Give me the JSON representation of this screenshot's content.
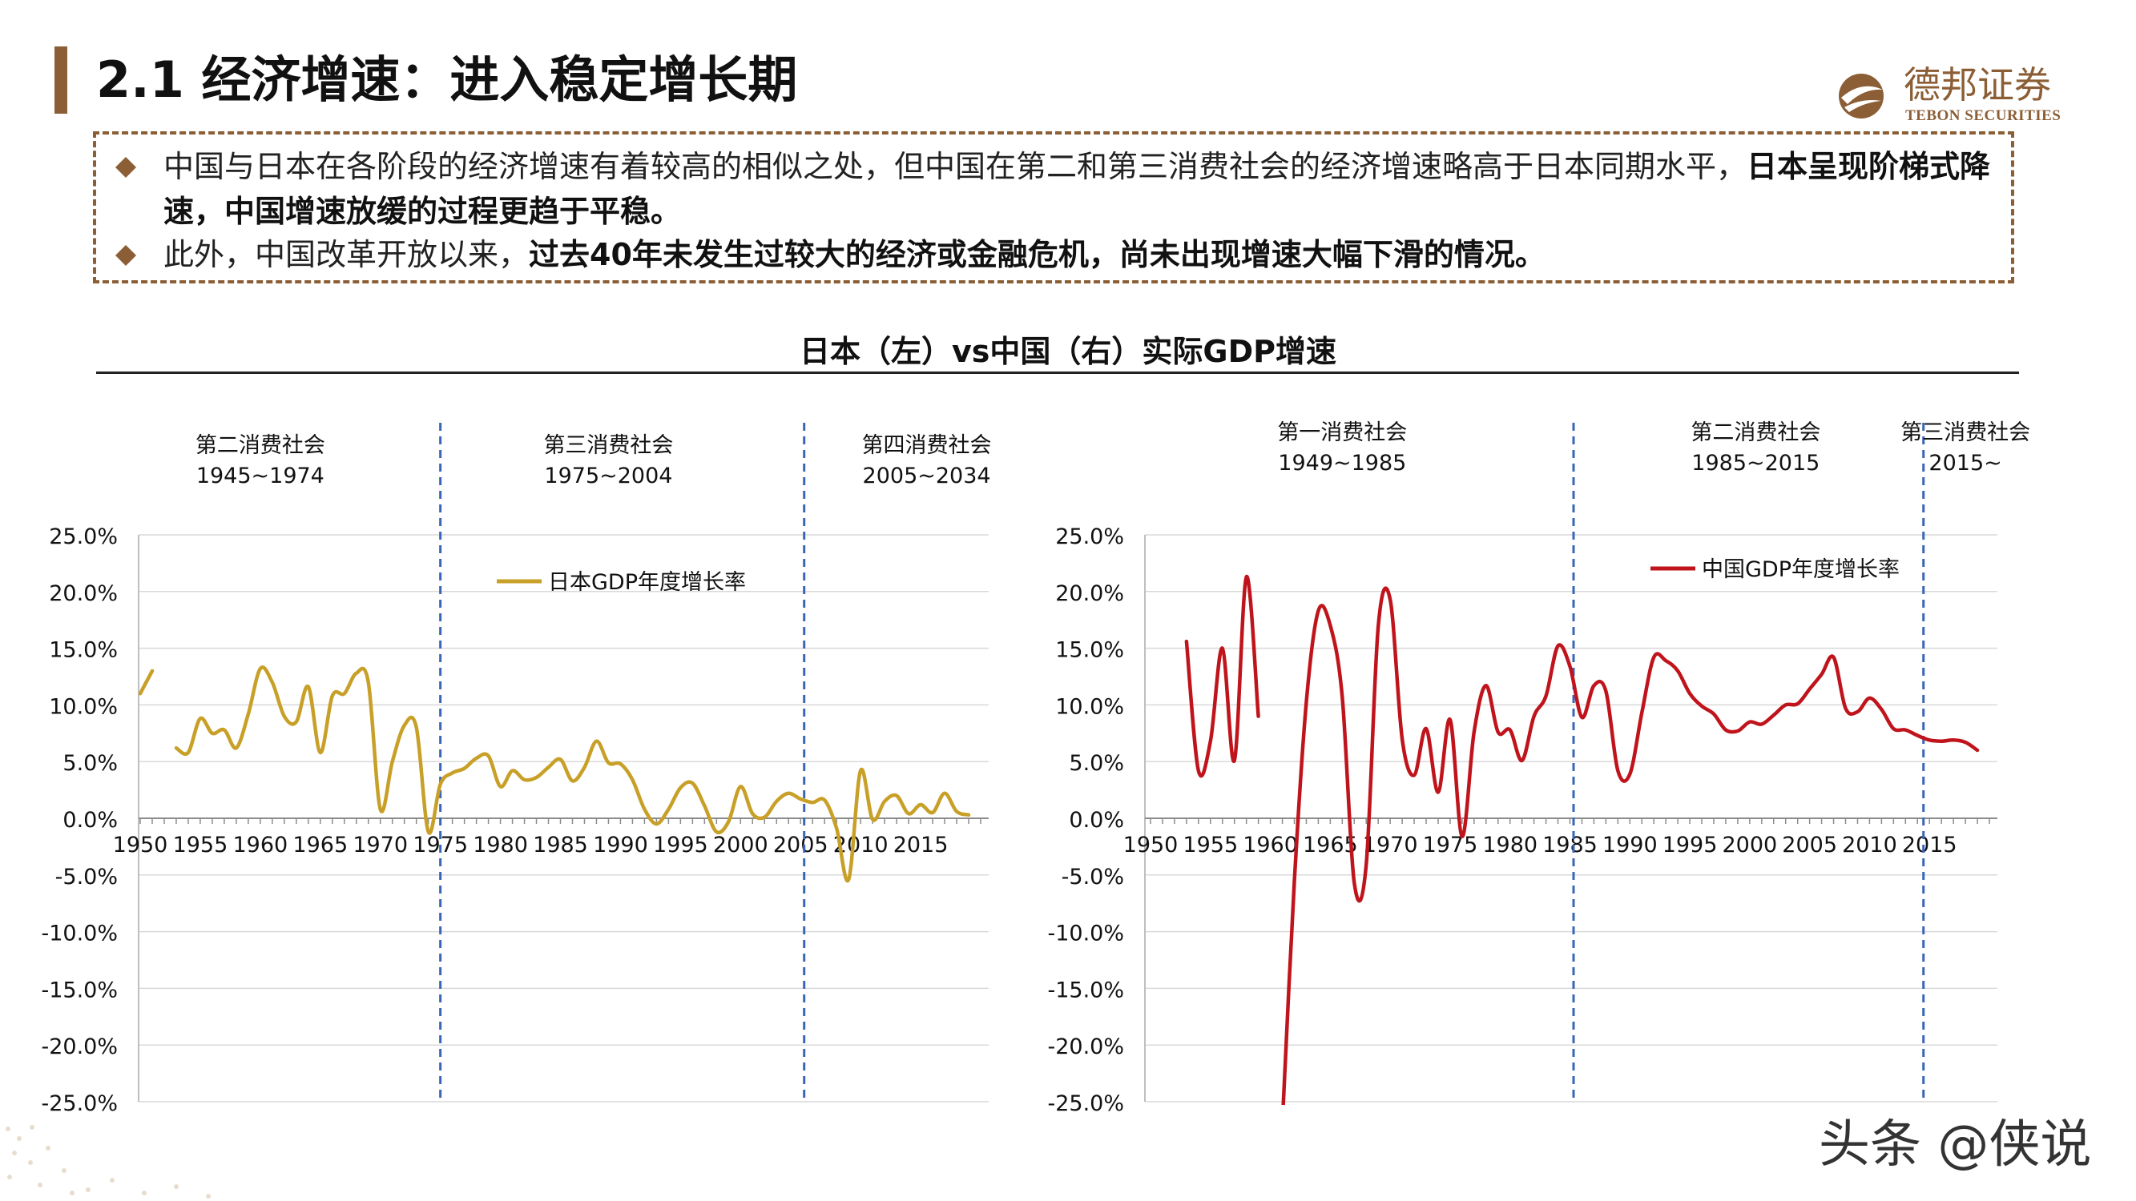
{
  "header": {
    "title": "2.1 经济增速：进入稳定增长期",
    "logo_cn": "德邦证券",
    "logo_en": "TEBON SECURITIES"
  },
  "notes": [
    {
      "normal": "中国与日本在各阶段的经济增速有着较高的相似之处，但中国在第二和第三消费社会的经济增速略高于日本同期水平，",
      "bold": "日本呈现阶梯式降速，中国增速放缓的过程更趋于平稳。"
    },
    {
      "normal": "此外，中国改革开放以来，",
      "bold": "过去40年未发生过较大的经济或金融危机，尚未出现增速大幅下滑的情况。"
    }
  ],
  "figure_title": "日本（左）vs中国（右）实际GDP增速",
  "watermark": "头条 @侠说",
  "colors": {
    "brand": "#8b5e35",
    "japan": "#c8a028",
    "china": "#c0141c",
    "divider": "#3a66b8",
    "grid": "#d9d9d9"
  },
  "chart_data": [
    {
      "type": "line",
      "legend": "日本GDP年度增长率",
      "legend_position": "top-center",
      "color": "#c8a028",
      "xlim": [
        1950,
        2020
      ],
      "ylim": [
        -0.25,
        0.25
      ],
      "yticks": [
        "25.0%",
        "20.0%",
        "15.0%",
        "10.0%",
        "5.0%",
        "0.0%",
        "-5.0%",
        "-10.0%",
        "-15.0%",
        "-20.0%",
        "-25.0%"
      ],
      "ytick_values": [
        0.25,
        0.2,
        0.15,
        0.1,
        0.05,
        0,
        -0.05,
        -0.1,
        -0.15,
        -0.2,
        -0.25
      ],
      "xticks": [
        "1950",
        "1955",
        "1960",
        "1965",
        "1970",
        "1975",
        "1980",
        "1985",
        "1990",
        "1995",
        "2000",
        "2005",
        "2010",
        "2015"
      ],
      "xtick_values": [
        1950,
        1955,
        1960,
        1965,
        1970,
        1975,
        1980,
        1985,
        1990,
        1995,
        2000,
        2005,
        2010,
        2015
      ],
      "grid": true,
      "dividers": [
        1975,
        2005.3
      ],
      "phases": [
        {
          "name": "第二消费社会",
          "years": "1945~1974",
          "center": 1960
        },
        {
          "name": "第三消费社会",
          "years": "1975~2004",
          "center": 1989
        },
        {
          "name": "第四消费社会",
          "years": "2005~2034",
          "center": 2015.5
        }
      ],
      "segments": [
        [
          [
            1950.0,
            0.11
          ],
          [
            1951.0,
            0.13
          ]
        ],
        [
          [
            1953.0,
            0.062
          ],
          [
            1954.0,
            0.058
          ],
          [
            1955.0,
            0.088
          ],
          [
            1956.0,
            0.075
          ],
          [
            1957.0,
            0.078
          ],
          [
            1958.0,
            0.062
          ],
          [
            1959.0,
            0.092
          ],
          [
            1960.0,
            0.132
          ],
          [
            1961.0,
            0.12
          ],
          [
            1962.0,
            0.09
          ],
          [
            1963.0,
            0.085
          ],
          [
            1964.0,
            0.116
          ],
          [
            1965.0,
            0.058
          ],
          [
            1966.0,
            0.108
          ],
          [
            1967.0,
            0.11
          ],
          [
            1968.0,
            0.128
          ],
          [
            1969.0,
            0.12
          ],
          [
            1970.0,
            0.008
          ],
          [
            1971.0,
            0.05
          ],
          [
            1972.0,
            0.082
          ],
          [
            1973.0,
            0.08
          ],
          [
            1974.0,
            -0.012
          ],
          [
            1975.0,
            0.03
          ],
          [
            1976.0,
            0.04
          ],
          [
            1977.0,
            0.044
          ],
          [
            1978.0,
            0.053
          ],
          [
            1979.0,
            0.055
          ],
          [
            1980.0,
            0.028
          ],
          [
            1981.0,
            0.042
          ],
          [
            1982.0,
            0.034
          ],
          [
            1983.0,
            0.036
          ],
          [
            1984.0,
            0.045
          ],
          [
            1985.0,
            0.052
          ],
          [
            1986.0,
            0.033
          ],
          [
            1987.0,
            0.045
          ],
          [
            1988.0,
            0.068
          ],
          [
            1989.0,
            0.049
          ],
          [
            1990.0,
            0.048
          ],
          [
            1991.0,
            0.034
          ],
          [
            1992.0,
            0.008
          ],
          [
            1993.0,
            -0.005
          ],
          [
            1994.0,
            0.008
          ],
          [
            1995.0,
            0.027
          ],
          [
            1996.0,
            0.031
          ],
          [
            1997.0,
            0.011
          ],
          [
            1998.0,
            -0.012
          ],
          [
            1999.0,
            -0.003
          ],
          [
            2000.0,
            0.028
          ],
          [
            2001.0,
            0.004
          ],
          [
            2002.0,
            0.001
          ],
          [
            2003.0,
            0.015
          ],
          [
            2004.0,
            0.022
          ],
          [
            2005.0,
            0.017
          ],
          [
            2006.0,
            0.014
          ],
          [
            2007.0,
            0.016
          ],
          [
            2008.0,
            -0.009
          ],
          [
            2009.0,
            -0.054
          ],
          [
            2010.0,
            0.042
          ],
          [
            2011.0,
            -0.001
          ],
          [
            2012.0,
            0.015
          ],
          [
            2013.0,
            0.02
          ],
          [
            2014.0,
            0.004
          ],
          [
            2015.0,
            0.012
          ],
          [
            2016.0,
            0.005
          ],
          [
            2017.0,
            0.022
          ],
          [
            2018.0,
            0.006
          ],
          [
            2019.0,
            0.003
          ]
        ]
      ]
    },
    {
      "type": "line",
      "legend": "中国GDP年度增长率",
      "legend_position": "top-right",
      "color": "#c0141c",
      "xlim": [
        1950,
        2020
      ],
      "ylim": [
        -0.25,
        0.25
      ],
      "yticks": [
        "25.0%",
        "20.0%",
        "15.0%",
        "10.0%",
        "5.0%",
        "0.0%",
        "-5.0%",
        "-10.0%",
        "-15.0%",
        "-20.0%",
        "-25.0%"
      ],
      "ytick_values": [
        0.25,
        0.2,
        0.15,
        0.1,
        0.05,
        0,
        -0.05,
        -0.1,
        -0.15,
        -0.2,
        -0.25
      ],
      "xticks": [
        "1950",
        "1955",
        "1960",
        "1965",
        "1970",
        "1975",
        "1980",
        "1985",
        "1990",
        "1995",
        "2000",
        "2005",
        "2010",
        "2015"
      ],
      "xtick_values": [
        1950,
        1955,
        1960,
        1965,
        1970,
        1975,
        1980,
        1985,
        1990,
        1995,
        2000,
        2005,
        2010,
        2015
      ],
      "grid": true,
      "dividers": [
        1985.3,
        2014.5
      ],
      "phases": [
        {
          "name": "第一消费社会",
          "years": "1949~1985",
          "center": 1966
        },
        {
          "name": "第二消费社会",
          "years": "1985~2015",
          "center": 2000.5
        },
        {
          "name": "第三消费社会",
          "years": "2015~",
          "center": 2018
        }
      ],
      "segments": [
        [
          [
            1953.0,
            0.156
          ],
          [
            1954.0,
            0.042
          ],
          [
            1955.0,
            0.068
          ],
          [
            1956.0,
            0.15
          ],
          [
            1957.0,
            0.051
          ],
          [
            1958.0,
            0.213
          ],
          [
            1959.0,
            0.09
          ]
        ],
        [
          [
            1961.0,
            -0.27
          ],
          [
            1962.0,
            -0.056
          ],
          [
            1963.0,
            0.102
          ],
          [
            1964.0,
            0.183
          ],
          [
            1965.0,
            0.17
          ],
          [
            1966.0,
            0.107
          ],
          [
            1967.0,
            -0.057
          ],
          [
            1968.0,
            -0.041
          ],
          [
            1969.0,
            0.169
          ],
          [
            1970.0,
            0.193
          ],
          [
            1971.0,
            0.07
          ],
          [
            1972.0,
            0.038
          ],
          [
            1973.0,
            0.079
          ],
          [
            1974.0,
            0.023
          ],
          [
            1975.0,
            0.087
          ],
          [
            1976.0,
            -0.016
          ],
          [
            1977.0,
            0.076
          ],
          [
            1978.0,
            0.117
          ],
          [
            1979.0,
            0.076
          ],
          [
            1980.0,
            0.078
          ],
          [
            1981.0,
            0.051
          ],
          [
            1982.0,
            0.09
          ],
          [
            1983.0,
            0.108
          ],
          [
            1984.0,
            0.152
          ],
          [
            1985.0,
            0.134
          ],
          [
            1986.0,
            0.089
          ],
          [
            1987.0,
            0.117
          ],
          [
            1988.0,
            0.112
          ],
          [
            1989.0,
            0.042
          ],
          [
            1990.0,
            0.039
          ],
          [
            1991.0,
            0.093
          ],
          [
            1992.0,
            0.142
          ],
          [
            1993.0,
            0.139
          ],
          [
            1994.0,
            0.13
          ],
          [
            1995.0,
            0.11
          ],
          [
            1996.0,
            0.099
          ],
          [
            1997.0,
            0.092
          ],
          [
            1998.0,
            0.078
          ],
          [
            1999.0,
            0.077
          ],
          [
            2000.0,
            0.085
          ],
          [
            2001.0,
            0.083
          ],
          [
            2002.0,
            0.091
          ],
          [
            2003.0,
            0.1
          ],
          [
            2004.0,
            0.101
          ],
          [
            2005.0,
            0.114
          ],
          [
            2006.0,
            0.127
          ],
          [
            2007.0,
            0.142
          ],
          [
            2008.0,
            0.097
          ],
          [
            2009.0,
            0.094
          ],
          [
            2010.0,
            0.106
          ],
          [
            2011.0,
            0.096
          ],
          [
            2012.0,
            0.079
          ],
          [
            2013.0,
            0.078
          ],
          [
            2014.0,
            0.073
          ],
          [
            2015.0,
            0.069
          ],
          [
            2016.0,
            0.068
          ],
          [
            2017.0,
            0.069
          ],
          [
            2018.0,
            0.067
          ],
          [
            2019.0,
            0.06
          ]
        ]
      ]
    }
  ]
}
